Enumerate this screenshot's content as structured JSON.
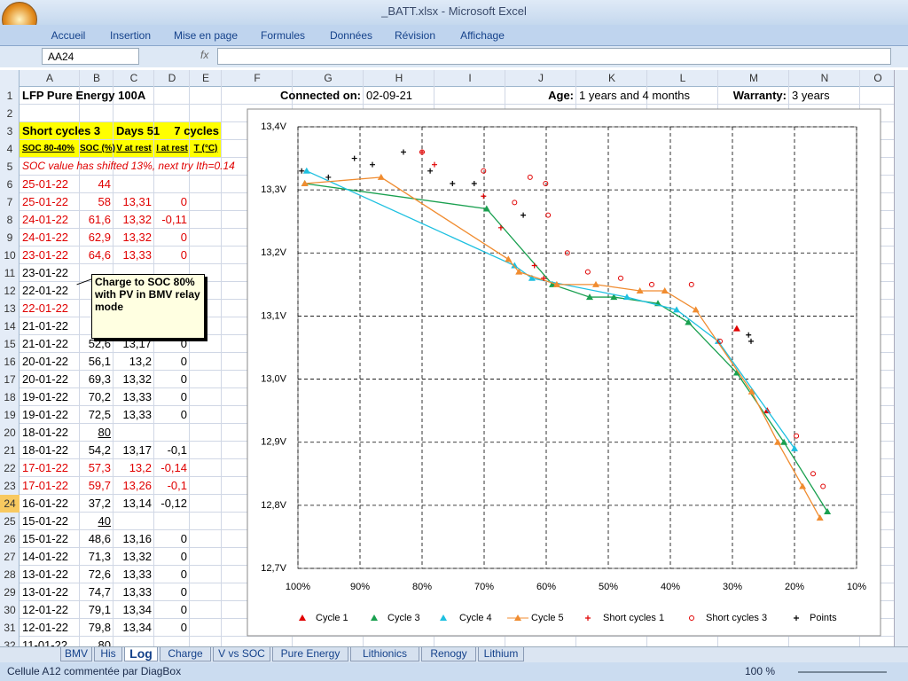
{
  "window": {
    "title": "_BATT.xlsx - Microsoft Excel"
  },
  "ribbon": {
    "tabs": [
      "Accueil",
      "Insertion",
      "Mise en page",
      "Formules",
      "Données",
      "Révision",
      "Affichage"
    ]
  },
  "formula_bar": {
    "name_box": "AA24",
    "function_label": "fx"
  },
  "sheet": {
    "column_headers": [
      "A",
      "B",
      "C",
      "D",
      "E",
      "F",
      "G",
      "H",
      "I",
      "J",
      "K",
      "L",
      "M",
      "N",
      "O"
    ],
    "row_headers": [
      1,
      2,
      3,
      4,
      5,
      6,
      7,
      8,
      9,
      10,
      11,
      12,
      13,
      14,
      15,
      16,
      17,
      18,
      19,
      20,
      21,
      22,
      23,
      24,
      25,
      26,
      27,
      28,
      29,
      30,
      31,
      32
    ],
    "cells": {
      "A1": "LFP Pure Energy 100A",
      "G1": "Connected on:",
      "H1": "02-09-21",
      "J1": "Age:",
      "K1": "1 years and 4 months",
      "M1": "Warranty:",
      "N1": "3 years",
      "A3": "Short cycles 3",
      "C3": "Days 51",
      "E3": "7 cycles",
      "A4": "SOC 80-40%",
      "B4": "SOC (%)",
      "C4": "V at rest",
      "D4": "I at rest",
      "E4": "T (°C)",
      "A5": "SOC value has shifted 13%, next try Ith=0.14",
      "A6": "25-01-22",
      "B6": "44",
      "A7": "25-01-22",
      "B7": "58",
      "C7": "13,31",
      "D7": "0",
      "A8": "24-01-22",
      "B8": "61,6",
      "C8": "13,32",
      "D8": "-0,11",
      "A9": "24-01-22",
      "B9": "62,9",
      "C9": "13,32",
      "D9": "0",
      "A10": "23-01-22",
      "B10": "64,6",
      "C10": "13,33",
      "D10": "0",
      "A11": "23-01-22",
      "A12": "22-01-22",
      "A13": "22-01-22",
      "A14": "21-01-22",
      "A15": "21-01-22",
      "B15": "52,6",
      "C15": "13,17",
      "D15": "0",
      "A16": "20-01-22",
      "B16": "56,1",
      "C16": "13,2",
      "D16": "0",
      "A17": "20-01-22",
      "B17": "69,3",
      "C17": "13,32",
      "D17": "0",
      "A18": "19-01-22",
      "B18": "70,2",
      "C18": "13,33",
      "D18": "0",
      "A19": "19-01-22",
      "B19": "72,5",
      "C19": "13,33",
      "D19": "0",
      "A20": "18-01-22",
      "B20": "80",
      "A21": "18-01-22",
      "B21": "54,2",
      "C21": "13,17",
      "D21": "-0,1",
      "A22": "17-01-22",
      "B22": "57,3",
      "C22": "13,2",
      "D22": "-0,14",
      "A23": "17-01-22",
      "B23": "59,7",
      "C23": "13,26",
      "D23": "-0,1",
      "A24": "16-01-22",
      "B24": "37,2",
      "C24": "13,14",
      "D24": "-0,12",
      "A25": "15-01-22",
      "B25": "40",
      "A26": "15-01-22",
      "B26": "48,6",
      "C26": "13,16",
      "D26": "0",
      "A27": "14-01-22",
      "B27": "71,3",
      "C27": "13,32",
      "D27": "0",
      "A28": "13-01-22",
      "B28": "72,6",
      "C28": "13,33",
      "D28": "0",
      "A29": "13-01-22",
      "B29": "74,7",
      "C29": "13,33",
      "D29": "0",
      "A30": "12-01-22",
      "B30": "79,1",
      "C30": "13,34",
      "D30": "0",
      "A31": "12-01-22",
      "B31": "79,8",
      "C31": "13,34",
      "D31": "0",
      "A32": "11-01-22",
      "B32": "80"
    },
    "red_cells": [
      "A5",
      "A6",
      "B6",
      "A7",
      "B7",
      "C7",
      "D7",
      "A8",
      "B8",
      "C8",
      "D8",
      "A9",
      "B9",
      "C9",
      "D9",
      "A10",
      "B10",
      "C10",
      "D10",
      "A13",
      "A22",
      "B22",
      "C22",
      "D22",
      "A23",
      "B23",
      "C23",
      "D23"
    ],
    "comment": {
      "text": "Charge to SOC 80% with PV in BMV relay mode"
    }
  },
  "chart_data": {
    "type": "scatter",
    "xlim": [
      100,
      10
    ],
    "ylim": [
      12.7,
      13.4
    ],
    "xticks": [
      {
        "value": 100,
        "label": "100%"
      },
      {
        "value": 90,
        "label": "90%"
      },
      {
        "value": 80,
        "label": "80%"
      },
      {
        "value": 70,
        "label": "70%"
      },
      {
        "value": 60,
        "label": "60%"
      },
      {
        "value": 50,
        "label": "50%"
      },
      {
        "value": 40,
        "label": "40%"
      },
      {
        "value": 30,
        "label": "30%"
      },
      {
        "value": 20,
        "label": "20%"
      },
      {
        "value": 10,
        "label": "10%"
      }
    ],
    "yticks": [
      {
        "value": 12.7,
        "label": "12,7V"
      },
      {
        "value": 12.8,
        "label": "12,8V"
      },
      {
        "value": 12.9,
        "label": "12,9V"
      },
      {
        "value": 13.0,
        "label": "13,0V"
      },
      {
        "value": 13.1,
        "label": "13,1V"
      },
      {
        "value": 13.2,
        "label": "13,2V"
      },
      {
        "value": 13.3,
        "label": "13,3V"
      },
      {
        "value": 13.4,
        "label": "13,4V"
      }
    ],
    "grid": true,
    "legend": "bottom",
    "series": [
      {
        "name": "Cycle 1",
        "color": "#e00000",
        "marker": "triangle",
        "x": [
          29.3,
          24.4
        ],
        "values": [
          13.08,
          12.95
        ]
      },
      {
        "name": "Cycle 3",
        "color": "#1aa050",
        "marker": "triangle",
        "line": true,
        "x": [
          98.9,
          69.6,
          59,
          53,
          49.1,
          42,
          37.1,
          29.3,
          21.7,
          14.7
        ],
        "values": [
          13.31,
          13.27,
          13.15,
          13.13,
          13.13,
          13.12,
          13.09,
          13.01,
          12.9,
          12.79
        ]
      },
      {
        "name": "Cycle 4",
        "color": "#1ec0e0",
        "marker": "triangle",
        "line": true,
        "x": [
          98.6,
          65.1,
          62.3,
          47,
          39,
          32.3,
          20
        ],
        "values": [
          13.33,
          13.18,
          13.16,
          13.13,
          13.11,
          13.06,
          12.89
        ]
      },
      {
        "name": "Cycle 5",
        "color": "#f08c30",
        "marker": "triangle",
        "line": true,
        "x": [
          98.9,
          86.6,
          66.1,
          64.4,
          58.3,
          52,
          44.9,
          40.9,
          35.9,
          26.9,
          22.7,
          18.7,
          15.9
        ],
        "values": [
          13.31,
          13.32,
          13.19,
          13.17,
          13.15,
          13.15,
          13.14,
          13.14,
          13.11,
          12.98,
          12.9,
          12.83,
          12.78
        ]
      },
      {
        "name": "Short cycles 1",
        "color": "#e00000",
        "marker": "plus",
        "x": [
          80,
          78,
          70.1,
          67.3,
          61.9,
          60.4
        ],
        "values": [
          13.36,
          13.34,
          13.29,
          13.24,
          13.18,
          13.16
        ]
      },
      {
        "name": "Short cycles 3",
        "color": "#e00000",
        "marker": "circle",
        "x": [
          80,
          70.1,
          62.6,
          60.1,
          65.1,
          59.7,
          56.6,
          53.3,
          48,
          43,
          36.6,
          32,
          19.7,
          17,
          15.4
        ],
        "values": [
          13.36,
          13.33,
          13.32,
          13.31,
          13.28,
          13.26,
          13.2,
          13.17,
          13.16,
          13.15,
          13.15,
          13.06,
          12.91,
          12.85,
          12.83
        ]
      },
      {
        "name": "Points",
        "color": "#000000",
        "marker": "plus",
        "x": [
          99.4,
          95.1,
          90.9,
          88,
          83,
          78.7,
          75.1,
          71.6,
          63.7,
          27.4,
          27
        ],
        "values": [
          13.33,
          13.32,
          13.35,
          13.34,
          13.36,
          13.33,
          13.31,
          13.31,
          13.26,
          13.07,
          13.06
        ]
      }
    ]
  },
  "sheet_tabs": {
    "tabs": [
      "BMV",
      "His",
      "Log",
      "Charge",
      "V vs SOC",
      "Pure Energy",
      "Lithionics",
      "Renogy",
      "Lithium"
    ],
    "active": 2
  },
  "status_bar": {
    "message": "Cellule A12 commentée par DiagBox",
    "zoom": "100 %"
  }
}
